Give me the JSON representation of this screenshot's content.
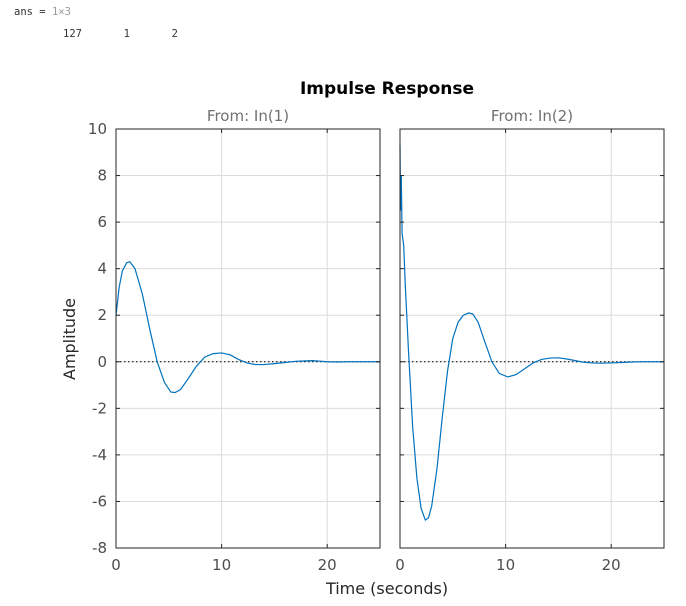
{
  "console": {
    "var_name": "ans",
    "equals": " = ",
    "dims": "1×3",
    "values": [
      "127",
      "1",
      "2"
    ]
  },
  "chart_data": {
    "type": "line",
    "title": "Impulse Response",
    "xlabel": "Time (seconds)",
    "ylabel": "Amplitude",
    "ylim": [
      -8,
      10
    ],
    "yticks": [
      -8,
      -6,
      -4,
      -2,
      0,
      2,
      4,
      6,
      8,
      10
    ],
    "grid": true,
    "line_color": "#0072bd",
    "zero_line": "dotted",
    "subplots": [
      {
        "title": "From: In(1)",
        "xlim": [
          0,
          25
        ],
        "xticks": [
          0,
          10,
          20
        ],
        "series": [
          {
            "x": [
              0,
              0.1,
              0.3,
              0.6,
              1.0,
              1.3,
              1.8,
              2.5,
              3.2,
              3.9,
              4.6,
              5.2,
              5.6,
              6.1,
              6.8,
              7.6,
              8.4,
              9.2,
              10.0,
              10.8,
              11.6,
              12.4,
              13.2,
              14.0,
              15.0,
              16.0,
              17.0,
              18.0,
              18.6,
              19.2,
              20.0,
              21.0,
              22.0,
              23.0,
              24.0,
              25.0
            ],
            "y": [
              2.0,
              2.4,
              3.2,
              3.9,
              4.25,
              4.3,
              4.0,
              2.9,
              1.4,
              0.0,
              -0.9,
              -1.3,
              -1.32,
              -1.2,
              -0.75,
              -0.2,
              0.2,
              0.35,
              0.38,
              0.3,
              0.1,
              -0.05,
              -0.12,
              -0.12,
              -0.08,
              -0.03,
              0.02,
              0.04,
              0.05,
              0.03,
              0.0,
              -0.01,
              0.0,
              0.0,
              0.0,
              0.0
            ]
          }
        ]
      },
      {
        "title": "From: In(2)",
        "xlim": [
          0,
          25
        ],
        "xticks": [
          0,
          10,
          20
        ],
        "series": [
          {
            "x": [
              0,
              0.05,
              0.12,
              0.2,
              0.35,
              0.5,
              0.8,
              1.2,
              1.6,
              2.0,
              2.4,
              2.7,
              3.0,
              3.5,
              4.0,
              4.5,
              5.0,
              5.5,
              6.0,
              6.5,
              6.9,
              7.4,
              8.0,
              8.7,
              9.4,
              10.2,
              11.0,
              11.8,
              12.6,
              13.4,
              14.2,
              15.0,
              15.8,
              16.6,
              17.4,
              18.2,
              19.0,
              20.0,
              21.0,
              22.0,
              23.0,
              24.0,
              25.0
            ],
            "y": [
              9.3,
              6.5,
              8.0,
              5.5,
              5.0,
              3.3,
              0.5,
              -2.8,
              -5.0,
              -6.3,
              -6.8,
              -6.7,
              -6.2,
              -4.6,
              -2.4,
              -0.4,
              1.0,
              1.7,
              2.0,
              2.1,
              2.05,
              1.7,
              0.9,
              0.0,
              -0.5,
              -0.65,
              -0.55,
              -0.3,
              -0.05,
              0.1,
              0.16,
              0.17,
              0.12,
              0.05,
              -0.02,
              -0.05,
              -0.06,
              -0.05,
              -0.03,
              -0.01,
              0.0,
              0.0,
              0.0
            ]
          }
        ]
      }
    ]
  }
}
